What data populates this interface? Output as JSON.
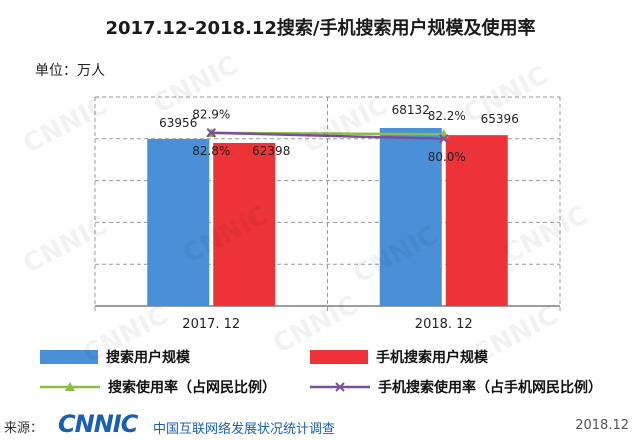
{
  "title": "2017.12-2018.12搜索/手机搜索用户规模及使用率",
  "unit_label": "单位：万人",
  "watermark": "CNNIC",
  "colors": {
    "search_users": "#4a90d9",
    "mobile_users": "#ee3338",
    "search_rate": "#8bbf3f",
    "mobile_rate": "#7b4f9e",
    "axis": "#7f7f7f"
  },
  "chart_data": {
    "type": "bar",
    "categories": [
      "2017. 12",
      "2018. 12"
    ],
    "series": [
      {
        "name": "搜索用户规模",
        "values": [
          63956,
          68132
        ],
        "kind": "bar"
      },
      {
        "name": "手机搜索用户规模",
        "values": [
          62398,
          65396
        ],
        "kind": "bar"
      },
      {
        "name": "搜索使用率（占网民比例）",
        "values": [
          82.8,
          82.2
        ],
        "kind": "line",
        "unit": "%"
      },
      {
        "name": "手机搜索使用率（占手机网民比例）",
        "values": [
          82.9,
          80.0
        ],
        "kind": "line",
        "unit": "%"
      }
    ],
    "bar_labels": [
      [
        "63956",
        "68132"
      ],
      [
        "62398",
        "65396"
      ]
    ],
    "line_labels": [
      [
        "82.8%",
        "82.2%"
      ],
      [
        "82.9%",
        "80.0%"
      ]
    ],
    "ylim": [
      0,
      80000
    ],
    "rate_ylim": [
      0,
      100
    ],
    "legend_position": "bottom",
    "grid": "dashed horizontal"
  },
  "legend": [
    {
      "label": "搜索用户规模",
      "kind": "bar",
      "color": "#4a90d9"
    },
    {
      "label": "手机搜索用户规模",
      "kind": "bar",
      "color": "#ee3338"
    },
    {
      "label": "搜索使用率（占网民比例）",
      "kind": "line-triangle",
      "color": "#8bbf3f"
    },
    {
      "label": "手机搜索使用率（占手机网民比例）",
      "kind": "line-cross",
      "color": "#7b4f9e"
    }
  ],
  "footer": {
    "source_label": "来源：",
    "logo": "CNNIC",
    "org": "中国互联网络发展状况统计调查",
    "date": "2018.12"
  }
}
